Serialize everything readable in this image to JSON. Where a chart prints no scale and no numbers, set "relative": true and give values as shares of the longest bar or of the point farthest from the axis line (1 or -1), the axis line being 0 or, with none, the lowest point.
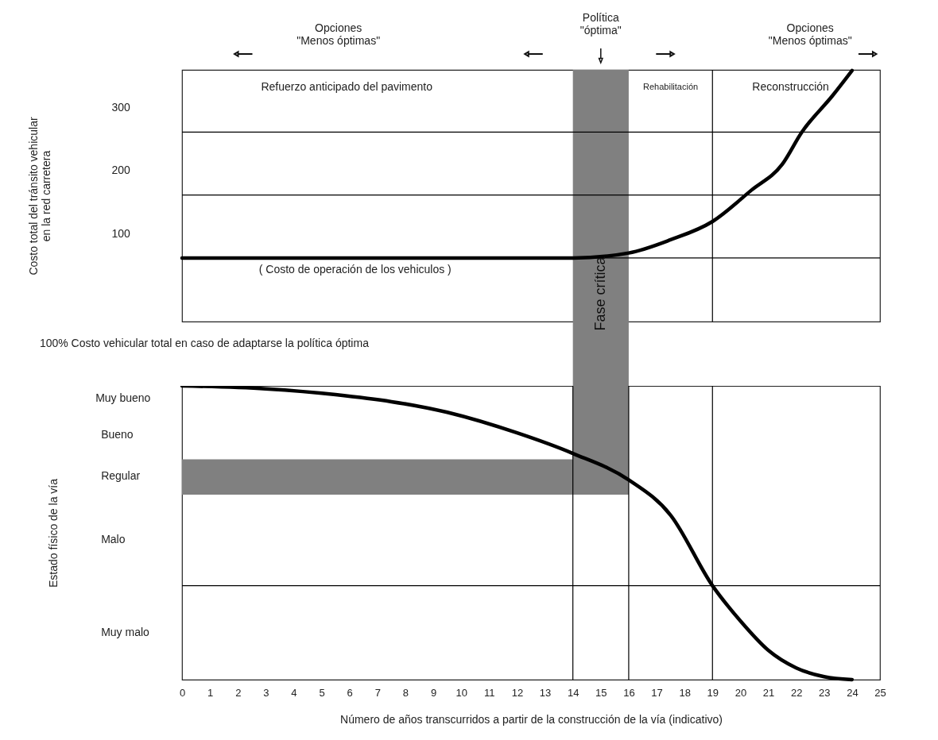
{
  "chart_data": [
    {
      "type": "line",
      "ylabel": "Costo total del tránsito vehicular\nen la red carretera",
      "x": [
        0,
        14,
        16,
        17.5,
        19,
        20.4,
        21.5,
        22.2,
        23.3,
        24
      ],
      "series": [
        {
          "color": "#000000",
          "values": [
            61,
            61,
            69,
            90,
            119,
            169,
            210,
            261,
            319,
            359
          ]
        }
      ],
      "xlim": [
        0,
        25
      ],
      "ylim": [
        -40,
        360
      ],
      "yticks": [
        100,
        200,
        300
      ],
      "tick_labels": "y",
      "ref_lines": [
        {
          "axis": "y",
          "value": 61
        },
        {
          "axis": "y",
          "value": 161
        },
        {
          "axis": "y",
          "value": 261
        },
        {
          "axis": "x",
          "value": 19
        }
      ],
      "bands": [
        {
          "axis": "x",
          "from": 14,
          "to": 16,
          "label": "Fase crítica",
          "color": "#808080"
        }
      ],
      "annotations": [
        "Opciones\n\"Menos óptimas\"",
        {
          "text": "Política\n\"óptima\"",
          "x": 15,
          "y": 360
        },
        "Opciones\n\"Menos óptimas\"",
        "Refuerzo anticipado del pavimento",
        "Rehabilitación",
        "Reconstrucción",
        "( Costo de operación de los vehiculos )",
        "100%  Costo vehicular total en caso de adaptarse la política óptima"
      ]
    },
    {
      "type": "line",
      "xlabel": "Número de años transcurridos a partir de la construcción de la vía (indicativo)",
      "ylabel": "Estado físico de la vía",
      "x": [
        0,
        3,
        5.5,
        9.5,
        12,
        14,
        16,
        17.5,
        19,
        20,
        21,
        22,
        23,
        24
      ],
      "series": [
        {
          "color": "#000000",
          "values": [
            1,
            0.99,
            0.97,
            0.91,
            0.84,
            0.77,
            0.68,
            0.56,
            0.32,
            0.2,
            0.1,
            0.04,
            0.01,
            0
          ]
        }
      ],
      "xlim": [
        0,
        25
      ],
      "xticks": [
        0,
        1,
        2,
        3,
        4,
        5,
        6,
        7,
        8,
        9,
        10,
        11,
        12,
        13,
        14,
        15,
        16,
        17,
        18,
        19,
        20,
        21,
        22,
        23,
        24,
        25
      ],
      "relative": true,
      "annotations": [
        "Muy bueno",
        "Bueno",
        "Regular",
        "Malo",
        "Muy malo"
      ],
      "ref_lines": [
        {
          "axis": "y",
          "value": 0.32
        },
        {
          "axis": "x",
          "value": 14
        },
        {
          "axis": "x",
          "value": 16
        },
        {
          "axis": "x",
          "value": 19
        }
      ],
      "bands": [
        {
          "axis": "x",
          "from": 14,
          "to": 16,
          "color": "#808080"
        },
        {
          "axis": "y",
          "from": 0.63,
          "to": 0.75,
          "color": "#808080"
        }
      ]
    }
  ]
}
